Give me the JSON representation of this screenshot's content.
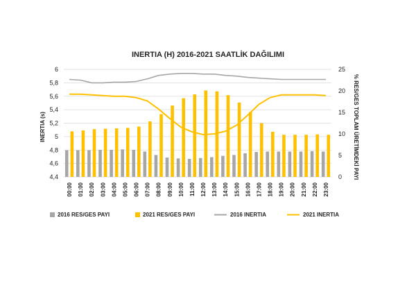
{
  "chart_data": {
    "type": "bar",
    "title": "INERTIA (H) 2016-2021 SAATLİK DAĞILIMI",
    "xlabel": "",
    "ylabel_left": "INERTIA (s)",
    "ylabel_right": "% RES/GES TOPLAM ÜRETİMDEKİ PAYI",
    "ylim_left": [
      4.4,
      6
    ],
    "yticks_left": [
      "4,4",
      "4,6",
      "4,8",
      "5",
      "5,2",
      "5,4",
      "5,6",
      "5,8",
      "6"
    ],
    "ylim_right": [
      0,
      25
    ],
    "yticks_right": [
      "0",
      "5",
      "10",
      "15",
      "20",
      "25"
    ],
    "grid": true,
    "legend_position": "bottom",
    "categories": [
      "00:00",
      "01:00",
      "02:00",
      "03:00",
      "04:00",
      "05:00",
      "06:00",
      "07:00",
      "08:00",
      "09:00",
      "10:00",
      "11:00",
      "12:00",
      "13:00",
      "14:00",
      "15:00",
      "16:00",
      "17:00",
      "18:00",
      "19:00",
      "20:00",
      "21:00",
      "22:00",
      "23:00"
    ],
    "series": [
      {
        "name": "2016 RES/GES PAYI",
        "kind": "bar",
        "axis": "right",
        "color": "#a6a6a6",
        "values": [
          6.2,
          6.2,
          6.2,
          6.3,
          6.3,
          6.4,
          6.3,
          5.9,
          5.1,
          4.5,
          4.3,
          4.2,
          4.4,
          4.6,
          4.9,
          5.1,
          5.5,
          5.8,
          5.9,
          5.9,
          5.9,
          5.9,
          6.0,
          5.9
        ]
      },
      {
        "name": "2021 RES/GES PAYI",
        "kind": "bar",
        "axis": "right",
        "color": "#ffc000",
        "values": [
          10.6,
          10.8,
          11.1,
          11.2,
          11.3,
          11.4,
          11.7,
          12.9,
          14.6,
          16.6,
          18.3,
          19.2,
          20.1,
          19.9,
          19.0,
          17.3,
          15.1,
          12.5,
          10.5,
          9.8,
          9.8,
          9.8,
          9.9,
          9.8
        ]
      },
      {
        "name": "2016 INERTIA",
        "kind": "line",
        "axis": "left",
        "color": "#a6a6a6",
        "values": [
          5.85,
          5.84,
          5.8,
          5.8,
          5.81,
          5.81,
          5.82,
          5.86,
          5.91,
          5.93,
          5.94,
          5.94,
          5.93,
          5.93,
          5.91,
          5.9,
          5.88,
          5.87,
          5.86,
          5.85,
          5.85,
          5.85,
          5.85,
          5.85
        ]
      },
      {
        "name": "2021 INERTIA",
        "kind": "line",
        "axis": "left",
        "color": "#ffc000",
        "values": [
          5.63,
          5.63,
          5.62,
          5.61,
          5.6,
          5.6,
          5.58,
          5.53,
          5.41,
          5.27,
          5.14,
          5.07,
          5.03,
          5.04,
          5.08,
          5.17,
          5.32,
          5.48,
          5.58,
          5.62,
          5.62,
          5.62,
          5.62,
          5.61
        ]
      }
    ]
  }
}
